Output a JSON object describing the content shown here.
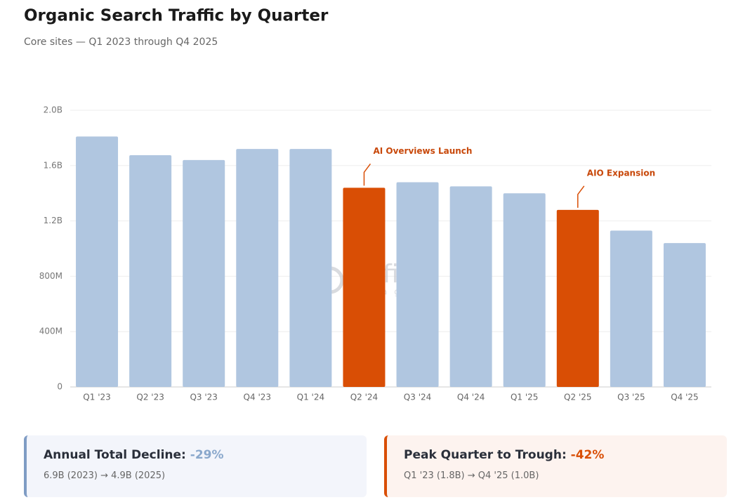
{
  "chart_data": {
    "type": "bar",
    "title": "Organic Search Traffic by Quarter",
    "subtitle": "Core sites — Q1 2023 through Q4 2025",
    "categories": [
      "Q1 '23",
      "Q2 '23",
      "Q3 '23",
      "Q4 '23",
      "Q1 '24",
      "Q2 '24",
      "Q3 '24",
      "Q4 '24",
      "Q1 '25",
      "Q2 '25",
      "Q3 '25",
      "Q4 '25"
    ],
    "values": [
      1.81,
      1.675,
      1.64,
      1.72,
      1.72,
      1.44,
      1.48,
      1.45,
      1.4,
      1.28,
      1.13,
      1.04
    ],
    "colors": [
      "#b0c6e0",
      "#b0c6e0",
      "#b0c6e0",
      "#b0c6e0",
      "#b0c6e0",
      "#d94e05",
      "#b0c6e0",
      "#b0c6e0",
      "#b0c6e0",
      "#d94e05",
      "#b0c6e0",
      "#b0c6e0"
    ],
    "ylim": [
      0,
      2.0
    ],
    "yticks": [
      0,
      {
        "value": 0.4,
        "label": "400M"
      },
      {
        "value": 0.8,
        "label": "800M"
      },
      {
        "value": 1.2,
        "label": "1.2B"
      },
      {
        "value": 1.6,
        "label": "1.6B"
      },
      {
        "value": 2.0,
        "label": "2.0B"
      }
    ],
    "grid": true,
    "annotations": [
      {
        "text": "AI Overviews Launch",
        "category": "Q2 '24"
      },
      {
        "text": "AIO Expansion",
        "category": "Q2 '25"
      }
    ],
    "watermark": {
      "brand": "define",
      "tagline": "media group"
    }
  },
  "summary_cards": [
    {
      "label": "Annual Total Decline:",
      "value": "-29%",
      "detail": "6.9B (2023) → 4.9B (2025)"
    },
    {
      "label": "Peak Quarter to Trough:",
      "value": "-42%",
      "detail": "Q1 '23 (1.8B) → Q4 '25 (1.0B)"
    }
  ]
}
